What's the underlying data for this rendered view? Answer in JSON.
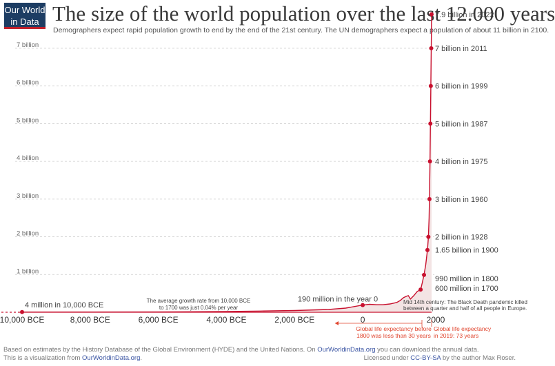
{
  "logo": {
    "line1": "Our World",
    "line2": "in Data"
  },
  "title": "The size of the world population over the last 12.000 years",
  "subtitle": "Demographers expect rapid population growth to end by the end of the 21st century. The UN demographers expect a population of about 11 billion in 2100.",
  "source": {
    "line1_pre": "Based on estimates by the History Database of the Global Environment (HYDE) and the United Nations. On ",
    "line1_link": "OurWorldinData.org",
    "line1_post": " you can download the annual data.",
    "line2_pre": "This is a visualization from ",
    "line2_link": "OurWorldinData.org",
    "line2_post": "."
  },
  "license": {
    "pre": "Licensed under ",
    "link": "CC-BY-SA",
    "post": " by the author Max Roser."
  },
  "colors": {
    "line": "#c8102e",
    "grid": "#cccccc",
    "area": "#f3e4e4",
    "annotation_red": "#e0442d"
  },
  "chart_data": {
    "type": "area",
    "xlim": [
      -10000,
      2022
    ],
    "ylim": [
      0,
      7.9
    ],
    "y_unit": "billion",
    "y_ticks": [
      {
        "value": 1,
        "label": "1 billion"
      },
      {
        "value": 2,
        "label": "2 billion"
      },
      {
        "value": 3,
        "label": "3 billion"
      },
      {
        "value": 4,
        "label": "4 billion"
      },
      {
        "value": 5,
        "label": "5 billion"
      },
      {
        "value": 6,
        "label": "6 billion"
      },
      {
        "value": 7,
        "label": "7 billion"
      }
    ],
    "x_ticks": [
      {
        "value": -10000,
        "label": "10,000 BCE"
      },
      {
        "value": -8000,
        "label": "8,000 BCE"
      },
      {
        "value": -6000,
        "label": "6,000 BCE"
      },
      {
        "value": -4000,
        "label": "4,000 BCE"
      },
      {
        "value": -2000,
        "label": "2,000 BCE"
      },
      {
        "value": 0,
        "label": "0"
      },
      {
        "value": 2000,
        "label": "2000"
      }
    ],
    "series": [
      {
        "x": [
          -10000,
          -8000,
          -6000,
          -5000,
          -4000,
          -3000,
          -2000,
          -1000,
          -500,
          0,
          200,
          400,
          600,
          800,
          1000,
          1100,
          1200,
          1300,
          1340,
          1400,
          1500,
          1600,
          1700,
          1750,
          1800,
          1850,
          1900,
          1928,
          1950,
          1960,
          1975,
          1987,
          1999,
          2011,
          2022
        ],
        "y": [
          0.004,
          0.005,
          0.008,
          0.012,
          0.019,
          0.031,
          0.046,
          0.073,
          0.11,
          0.19,
          0.21,
          0.2,
          0.2,
          0.22,
          0.26,
          0.31,
          0.39,
          0.43,
          0.44,
          0.35,
          0.44,
          0.55,
          0.6,
          0.79,
          0.99,
          1.26,
          1.65,
          2.0,
          2.5,
          3.0,
          4.0,
          5.0,
          6.0,
          7.0,
          7.9
        ]
      }
    ],
    "points": [
      {
        "x": -10000,
        "y": 0.004,
        "label": "4 million in 10,000 BCE"
      },
      {
        "x": 0,
        "y": 0.19,
        "label": "190 million in the year 0"
      },
      {
        "x": 1700,
        "y": 0.6,
        "label": "600 million in 1700"
      },
      {
        "x": 1800,
        "y": 0.99,
        "label": "990 million in 1800"
      },
      {
        "x": 1900,
        "y": 1.65,
        "label": "1.65 billion in 1900"
      },
      {
        "x": 1928,
        "y": 2.0,
        "label": "2 billion in 1928"
      },
      {
        "x": 1960,
        "y": 3.0,
        "label": "3 billion in 1960"
      },
      {
        "x": 1975,
        "y": 4.0,
        "label": "4 billion in 1975"
      },
      {
        "x": 1987,
        "y": 5.0,
        "label": "5 billion in 1987"
      },
      {
        "x": 1999,
        "y": 6.0,
        "label": "6 billion in 1999"
      },
      {
        "x": 2011,
        "y": 7.0,
        "label": "7 billion in 2011"
      },
      {
        "x": 2022,
        "y": 7.9,
        "label": "7.9 billion in 2022"
      }
    ],
    "annotations": {
      "growth_rate": [
        "The average growth rate from 10,000 BCE",
        "to 1700 was just  0.04% per year"
      ],
      "black_death": [
        "Mid 14th century: The Black Death pandemic killed",
        "between a quarter and half of all people in Europe."
      ],
      "life_1800": [
        "Global life expectancy before",
        "1800 was less than 30 years"
      ],
      "life_2019": [
        "Global life expectancy",
        "in 2019: 73 years"
      ]
    }
  }
}
